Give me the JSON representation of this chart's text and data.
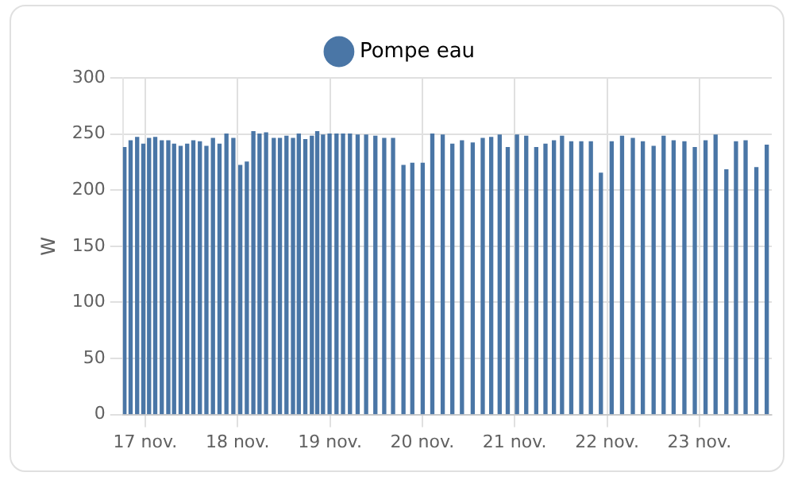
{
  "chart_data": {
    "type": "bar",
    "ylabel": "W",
    "legend": "top",
    "grid": true,
    "series": [
      {
        "name": "Pompe eau",
        "color": "#4a76a6",
        "x": [
          "--11-16T18:36",
          "--11-16T20:12",
          "--11-16T21:54",
          "--11-16T23:30",
          "--11-17T01:00",
          "--11-17T02:36",
          "--11-17T04:18",
          "--11-17T06:00",
          "--11-17T07:30",
          "--11-17T09:12",
          "--11-17T10:54",
          "--11-17T12:30",
          "--11-17T14:12",
          "--11-17T15:54",
          "--11-17T17:36",
          "--11-17T19:18",
          "--11-17T21:06",
          "--11-17T22:54",
          "--11-18T00:42",
          "--11-18T02:24",
          "--11-18T04:06",
          "--11-18T05:42",
          "--11-18T07:24",
          "--11-18T09:24",
          "--11-18T11:00",
          "--11-18T12:42",
          "--11-18T14:24",
          "--11-18T15:54",
          "--11-18T17:36",
          "--11-18T19:18",
          "--11-18T20:42",
          "--11-18T22:12",
          "--11-18T23:54",
          "--11-19T01:42",
          "--11-19T03:24",
          "--11-19T05:12",
          "--11-19T07:12",
          "--11-19T09:24",
          "--11-19T11:48",
          "--11-19T14:06",
          "--11-19T16:24",
          "--11-19T19:06",
          "--11-19T21:24",
          "--11-20T00:06",
          "--11-20T02:36",
          "--11-20T05:18",
          "--11-20T07:48",
          "--11-20T10:18",
          "--11-20T13:06",
          "--11-20T15:42",
          "--11-20T17:54",
          "--11-20T20:06",
          "--11-20T22:12",
          "--11-21T00:36",
          "--11-21T03:00",
          "--11-21T05:36",
          "--11-21T08:00",
          "--11-21T10:12",
          "--11-21T12:18",
          "--11-21T14:42",
          "--11-21T17:18",
          "--11-21T19:48",
          "--11-21T22:24",
          "--11-22T01:12",
          "--11-22T03:54",
          "--11-22T06:42",
          "--11-22T09:18",
          "--11-22T12:06",
          "--11-22T14:42",
          "--11-22T17:18",
          "--11-22T20:06",
          "--11-22T22:48",
          "--11-23T01:36",
          "--11-23T04:12",
          "--11-23T07:00",
          "--11-23T09:30",
          "--11-23T12:00",
          "--11-23T14:48",
          "--11-23T17:30"
        ],
        "values": [
          238,
          244,
          247,
          241,
          246,
          247,
          244,
          244,
          241,
          239,
          241,
          244,
          243,
          239,
          246,
          241,
          250,
          246,
          222,
          225,
          252,
          250,
          251,
          246,
          246,
          248,
          246,
          250,
          245,
          248,
          252,
          249,
          250,
          250,
          250,
          250,
          249,
          249,
          248,
          246,
          246,
          222,
          224,
          224,
          250,
          249,
          241,
          244,
          242,
          246,
          247,
          249,
          238,
          249,
          248,
          238,
          241,
          244,
          248,
          243,
          243,
          243,
          215,
          243,
          248,
          246,
          243,
          239,
          248,
          244,
          243,
          238,
          244,
          249,
          218,
          243,
          244,
          220,
          240
        ]
      }
    ],
    "xlim": [
      "--11-16T18:12",
      "--11-23T18:48"
    ],
    "xticks": [
      {
        "value": "--11-17",
        "label": "17 nov."
      },
      {
        "value": "--11-18",
        "label": "18 nov."
      },
      {
        "value": "--11-19",
        "label": "19 nov."
      },
      {
        "value": "--11-20",
        "label": "20 nov."
      },
      {
        "value": "--11-21",
        "label": "21 nov."
      },
      {
        "value": "--11-22",
        "label": "22 nov."
      },
      {
        "value": "--11-23",
        "label": "23 nov."
      }
    ],
    "ylim": [
      0,
      300
    ],
    "yticks": [
      0,
      50,
      100,
      150,
      200,
      250,
      300
    ]
  }
}
